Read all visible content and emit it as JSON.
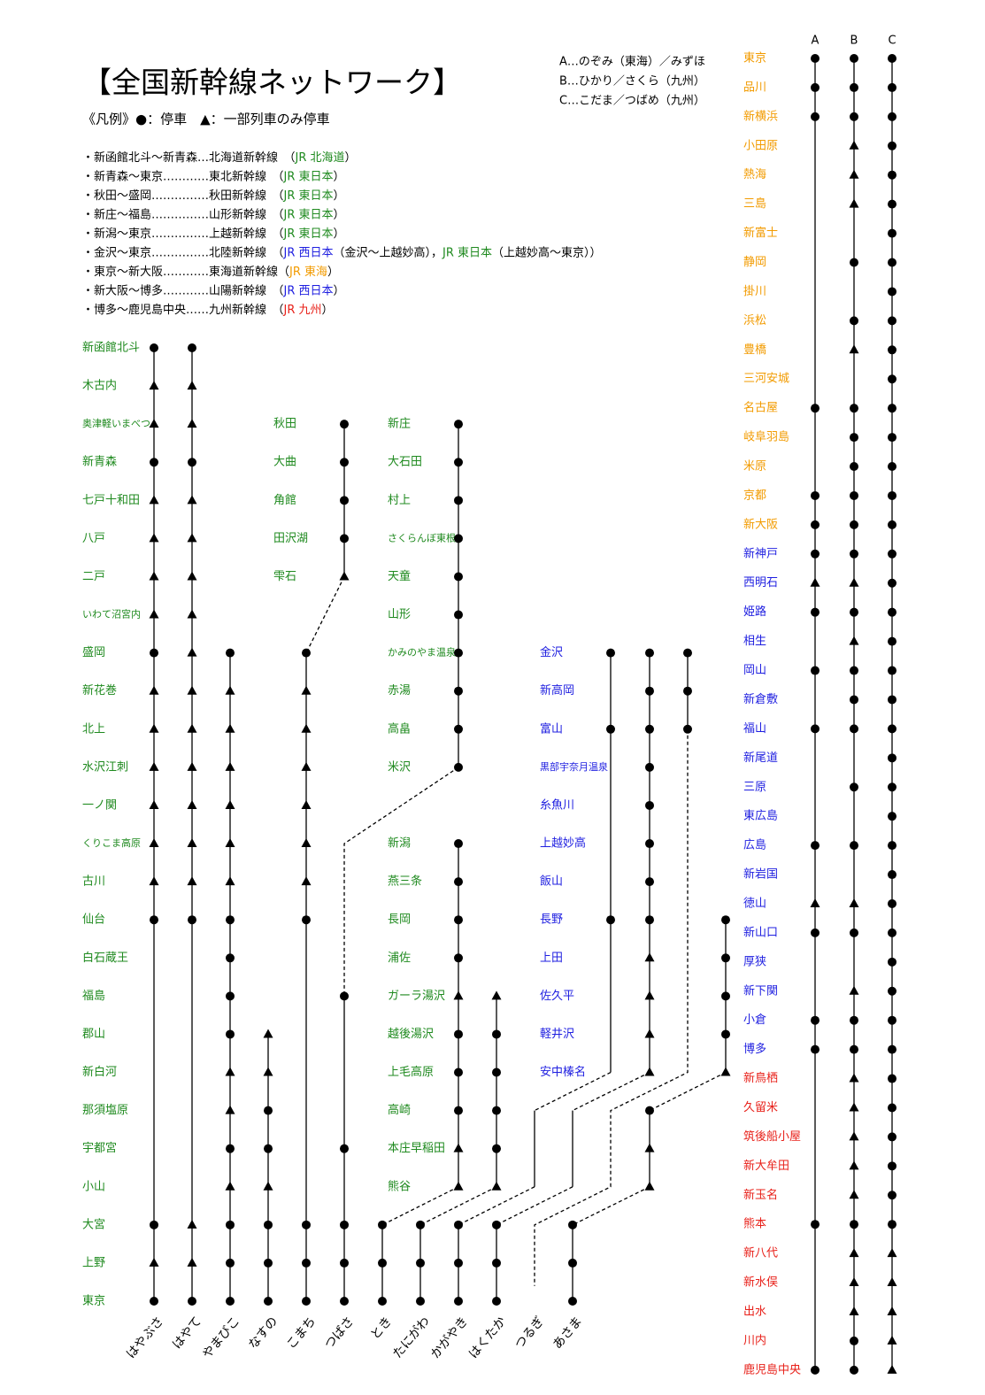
{
  "title": "【全国新幹線ネットワーク】",
  "legend": "《凡例》●：停車　▲：一部列車のみ停車",
  "key": [
    "A…のぞみ（東海）／みずほ",
    "B…ひかり／さくら（九州）",
    "C…こだま／つばめ（九州）"
  ],
  "lines": [
    {
      "parts": [
        {
          "text": "・新函館北斗〜新青森…北海道新幹線　（",
          "color": "#000000"
        },
        {
          "text": "JR 北海道",
          "color": "#1f8a1f"
        },
        {
          "text": "）",
          "color": "#000000"
        }
      ]
    },
    {
      "parts": [
        {
          "text": "・新青森〜東京…………東北新幹線　（",
          "color": "#000000"
        },
        {
          "text": "JR 東日本",
          "color": "#1f8a1f"
        },
        {
          "text": "）",
          "color": "#000000"
        }
      ]
    },
    {
      "parts": [
        {
          "text": "・秋田〜盛岡……………秋田新幹線　（",
          "color": "#000000"
        },
        {
          "text": "JR 東日本",
          "color": "#1f8a1f"
        },
        {
          "text": "）",
          "color": "#000000"
        }
      ]
    },
    {
      "parts": [
        {
          "text": "・新庄〜福島……………山形新幹線　（",
          "color": "#000000"
        },
        {
          "text": "JR 東日本",
          "color": "#1f8a1f"
        },
        {
          "text": "）",
          "color": "#000000"
        }
      ]
    },
    {
      "parts": [
        {
          "text": "・新潟〜東京……………上越新幹線　（",
          "color": "#000000"
        },
        {
          "text": "JR 東日本",
          "color": "#1f8a1f"
        },
        {
          "text": "）",
          "color": "#000000"
        }
      ]
    },
    {
      "parts": [
        {
          "text": "・金沢〜東京……………北陸新幹線　（",
          "color": "#000000"
        },
        {
          "text": "JR 西日本",
          "color": "#1f1fe0"
        },
        {
          "text": "（金沢〜上越妙高），",
          "color": "#000000"
        },
        {
          "text": "JR 東日本",
          "color": "#1f8a1f"
        },
        {
          "text": "（上越妙高〜東京））",
          "color": "#000000"
        }
      ]
    },
    {
      "parts": [
        {
          "text": "・東京〜新大阪…………東海道新幹線（",
          "color": "#000000"
        },
        {
          "text": "JR 東海",
          "color": "#f29b00"
        },
        {
          "text": "）",
          "color": "#000000"
        }
      ]
    },
    {
      "parts": [
        {
          "text": "・新大阪〜博多…………山陽新幹線　（",
          "color": "#000000"
        },
        {
          "text": "JR 西日本",
          "color": "#1f1fe0"
        },
        {
          "text": "）",
          "color": "#000000"
        }
      ]
    },
    {
      "parts": [
        {
          "text": "・博多〜鹿児島中央……九州新幹線　（",
          "color": "#000000"
        },
        {
          "text": "JR 九州",
          "color": "#e8211a"
        },
        {
          "text": "）",
          "color": "#000000"
        }
      ]
    }
  ],
  "station_columns": [
    {
      "color": "#1f8a1f",
      "names": [
        "新函館北斗",
        "木古内",
        "奥津軽いまべつ",
        "新青森",
        "七戸十和田",
        "八戸",
        "二戸",
        "いわて沼宮内",
        "盛岡",
        "新花巻",
        "北上",
        "水沢江刺",
        "一ノ関",
        "くりこま高原",
        "古川",
        "仙台",
        "白石蔵王",
        "福島",
        "郡山",
        "新白河",
        "那須塩原",
        "宇都宮",
        "小山",
        "大宮",
        "上野",
        "東京"
      ]
    },
    {
      "color": "#1f8a1f",
      "names": [
        "秋田",
        "大曲",
        "角館",
        "田沢湖",
        "雫石"
      ]
    },
    {
      "color": "#1f8a1f",
      "names": [
        "新庄",
        "大石田",
        "村上",
        "さくらんぼ東根",
        "天童",
        "山形",
        "かみのやま温泉",
        "赤湯",
        "高畠",
        "米沢",
        "新潟",
        "燕三条",
        "長岡",
        "浦佐",
        "ガーラ湯沢",
        "越後湯沢",
        "上毛高原",
        "高崎",
        "本庄早稲田",
        "熊谷"
      ]
    },
    {
      "color": "#1f1fe0",
      "names": [
        "金沢",
        "新高岡",
        "富山",
        "黒部宇奈月温泉",
        "糸魚川",
        "上越妙高",
        "飯山",
        "長野",
        "上田",
        "佐久平",
        "軽井沢",
        "安中榛名"
      ]
    }
  ],
  "trains": [
    {
      "name": "はやぶさ",
      "stops": [
        "●",
        "▲",
        "▲",
        "●",
        "▲",
        "▲",
        "▲",
        "▲",
        "●",
        "▲",
        "▲",
        "▲",
        "▲",
        "▲",
        "▲",
        "●",
        "●",
        "▲",
        "●"
      ]
    },
    {
      "name": "はやて",
      "stops": [
        "●",
        "▲",
        "▲",
        "●",
        "▲",
        "▲",
        "▲",
        "▲",
        "▲",
        "▲",
        "▲",
        "▲",
        "▲",
        "▲",
        "▲",
        "●",
        "▲",
        "▲",
        "●"
      ]
    },
    {
      "name": "やまびこ",
      "stops": [
        "●",
        "▲",
        "▲",
        "▲",
        "▲",
        "▲",
        "▲",
        "●",
        "●",
        "●",
        "●",
        "▲",
        "▲",
        "●",
        "▲",
        "●",
        "●",
        "●"
      ]
    },
    {
      "name": "なすの",
      "stops": [
        "▲",
        "▲",
        "●",
        "●",
        "▲",
        "●",
        "●",
        "●"
      ]
    },
    {
      "name": "こまち",
      "stops": [
        "●",
        "●",
        "●",
        "●",
        "▲",
        "●",
        "▲",
        "▲",
        "▲",
        "▲",
        "▲",
        "▲",
        "●",
        "●",
        "●",
        "●"
      ]
    },
    {
      "name": "つばさ",
      "stops": [
        "●",
        "●",
        "●",
        "●",
        "●",
        "●",
        "●",
        "●",
        "●",
        "●",
        "●",
        "●",
        "●",
        "●",
        "●"
      ]
    },
    {
      "name": "とき",
      "stops": [
        "●",
        "●",
        "●",
        "●",
        "▲",
        "●",
        "●",
        "●",
        "▲",
        "▲",
        "●",
        "●",
        "●"
      ]
    },
    {
      "name": "たにがわ",
      "stops": [
        "▲",
        "●",
        "●",
        "●",
        "●",
        "▲",
        "●",
        "●",
        "●"
      ]
    },
    {
      "name": "かがやき",
      "stops": [
        "●",
        "●",
        "●",
        "●",
        "●",
        "●"
      ]
    },
    {
      "name": "はくたか",
      "stops": [
        "●",
        "●",
        "●",
        "●",
        "●",
        "●",
        "●",
        "●",
        "▲",
        "▲",
        "▲",
        "▲",
        "●",
        "●",
        "●"
      ]
    },
    {
      "name": "つるぎ",
      "stops": [
        "●",
        "●",
        "●"
      ]
    },
    {
      "name": "あさま",
      "stops": [
        "●",
        "●",
        "●",
        "●",
        "▲",
        "●",
        "▲",
        "▲",
        "●",
        "●",
        "●"
      ]
    }
  ],
  "main_line": {
    "columns": [
      "A",
      "B",
      "C"
    ],
    "stations": [
      {
        "name": "東京",
        "color": "#f29b00",
        "stops": [
          "●",
          "●",
          "●"
        ]
      },
      {
        "name": "品川",
        "color": "#f29b00",
        "stops": [
          "●",
          "●",
          "●"
        ]
      },
      {
        "name": "新横浜",
        "color": "#f29b00",
        "stops": [
          "●",
          "●",
          "●"
        ]
      },
      {
        "name": "小田原",
        "color": "#f29b00",
        "stops": [
          null,
          "▲",
          "●"
        ]
      },
      {
        "name": "熱海",
        "color": "#f29b00",
        "stops": [
          null,
          "▲",
          "●"
        ]
      },
      {
        "name": "三島",
        "color": "#f29b00",
        "stops": [
          null,
          "▲",
          "●"
        ]
      },
      {
        "name": "新富士",
        "color": "#f29b00",
        "stops": [
          null,
          null,
          "●"
        ]
      },
      {
        "name": "静岡",
        "color": "#f29b00",
        "stops": [
          null,
          "●",
          "●"
        ]
      },
      {
        "name": "掛川",
        "color": "#f29b00",
        "stops": [
          null,
          null,
          "●"
        ]
      },
      {
        "name": "浜松",
        "color": "#f29b00",
        "stops": [
          null,
          "●",
          "●"
        ]
      },
      {
        "name": "豊橋",
        "color": "#f29b00",
        "stops": [
          null,
          "▲",
          "●"
        ]
      },
      {
        "name": "三河安城",
        "color": "#f29b00",
        "stops": [
          null,
          null,
          "●"
        ]
      },
      {
        "name": "名古屋",
        "color": "#f29b00",
        "stops": [
          "●",
          "●",
          "●"
        ]
      },
      {
        "name": "岐阜羽島",
        "color": "#f29b00",
        "stops": [
          null,
          "●",
          "●"
        ]
      },
      {
        "name": "米原",
        "color": "#f29b00",
        "stops": [
          null,
          "●",
          "●"
        ]
      },
      {
        "name": "京都",
        "color": "#f29b00",
        "stops": [
          "●",
          "●",
          "●"
        ]
      },
      {
        "name": "新大阪",
        "color": "#f29b00",
        "stops": [
          "●",
          "●",
          "●"
        ]
      },
      {
        "name": "新神戸",
        "color": "#1f1fe0",
        "stops": [
          "●",
          "●",
          "●"
        ]
      },
      {
        "name": "西明石",
        "color": "#1f1fe0",
        "stops": [
          "▲",
          "▲",
          "●"
        ]
      },
      {
        "name": "姫路",
        "color": "#1f1fe0",
        "stops": [
          "●",
          "●",
          "●"
        ]
      },
      {
        "name": "相生",
        "color": "#1f1fe0",
        "stops": [
          null,
          "▲",
          "●"
        ]
      },
      {
        "name": "岡山",
        "color": "#1f1fe0",
        "stops": [
          "●",
          "●",
          "●"
        ]
      },
      {
        "name": "新倉敷",
        "color": "#1f1fe0",
        "stops": [
          null,
          "●",
          "●"
        ]
      },
      {
        "name": "福山",
        "color": "#1f1fe0",
        "stops": [
          "●",
          "●",
          "●"
        ]
      },
      {
        "name": "新尾道",
        "color": "#1f1fe0",
        "stops": [
          null,
          null,
          "●"
        ]
      },
      {
        "name": "三原",
        "color": "#1f1fe0",
        "stops": [
          null,
          "●",
          "●"
        ]
      },
      {
        "name": "東広島",
        "color": "#1f1fe0",
        "stops": [
          null,
          null,
          "●"
        ]
      },
      {
        "name": "広島",
        "color": "#1f1fe0",
        "stops": [
          "●",
          "●",
          "●"
        ]
      },
      {
        "name": "新岩国",
        "color": "#1f1fe0",
        "stops": [
          null,
          null,
          "●"
        ]
      },
      {
        "name": "徳山",
        "color": "#1f1fe0",
        "stops": [
          "▲",
          "▲",
          "●"
        ]
      },
      {
        "name": "新山口",
        "color": "#1f1fe0",
        "stops": [
          "●",
          "●",
          "●"
        ]
      },
      {
        "name": "厚狭",
        "color": "#1f1fe0",
        "stops": [
          null,
          null,
          "●"
        ]
      },
      {
        "name": "新下関",
        "color": "#1f1fe0",
        "stops": [
          null,
          "▲",
          "●"
        ]
      },
      {
        "name": "小倉",
        "color": "#1f1fe0",
        "stops": [
          "●",
          "●",
          "●"
        ]
      },
      {
        "name": "博多",
        "color": "#1f1fe0",
        "stops": [
          "●",
          "●",
          "●"
        ]
      },
      {
        "name": "新鳥栖",
        "color": "#e8211a",
        "stops": [
          null,
          "▲",
          "●"
        ]
      },
      {
        "name": "久留米",
        "color": "#e8211a",
        "stops": [
          null,
          "▲",
          "●"
        ]
      },
      {
        "name": "筑後船小屋",
        "color": "#e8211a",
        "stops": [
          null,
          "▲",
          "●"
        ]
      },
      {
        "name": "新大牟田",
        "color": "#e8211a",
        "stops": [
          null,
          "▲",
          "●"
        ]
      },
      {
        "name": "新玉名",
        "color": "#e8211a",
        "stops": [
          null,
          "▲",
          "●"
        ]
      },
      {
        "name": "熊本",
        "color": "#e8211a",
        "stops": [
          "●",
          "●",
          "●"
        ]
      },
      {
        "name": "新八代",
        "color": "#e8211a",
        "stops": [
          null,
          "▲",
          "▲"
        ]
      },
      {
        "name": "新水俣",
        "color": "#e8211a",
        "stops": [
          null,
          "▲",
          "▲"
        ]
      },
      {
        "name": "出水",
        "color": "#e8211a",
        "stops": [
          null,
          "▲",
          "▲"
        ]
      },
      {
        "name": "川内",
        "color": "#e8211a",
        "stops": [
          null,
          "●",
          "▲"
        ]
      },
      {
        "name": "鹿児島中央",
        "color": "#e8211a",
        "stops": [
          "●",
          "●",
          "▲"
        ]
      }
    ]
  }
}
